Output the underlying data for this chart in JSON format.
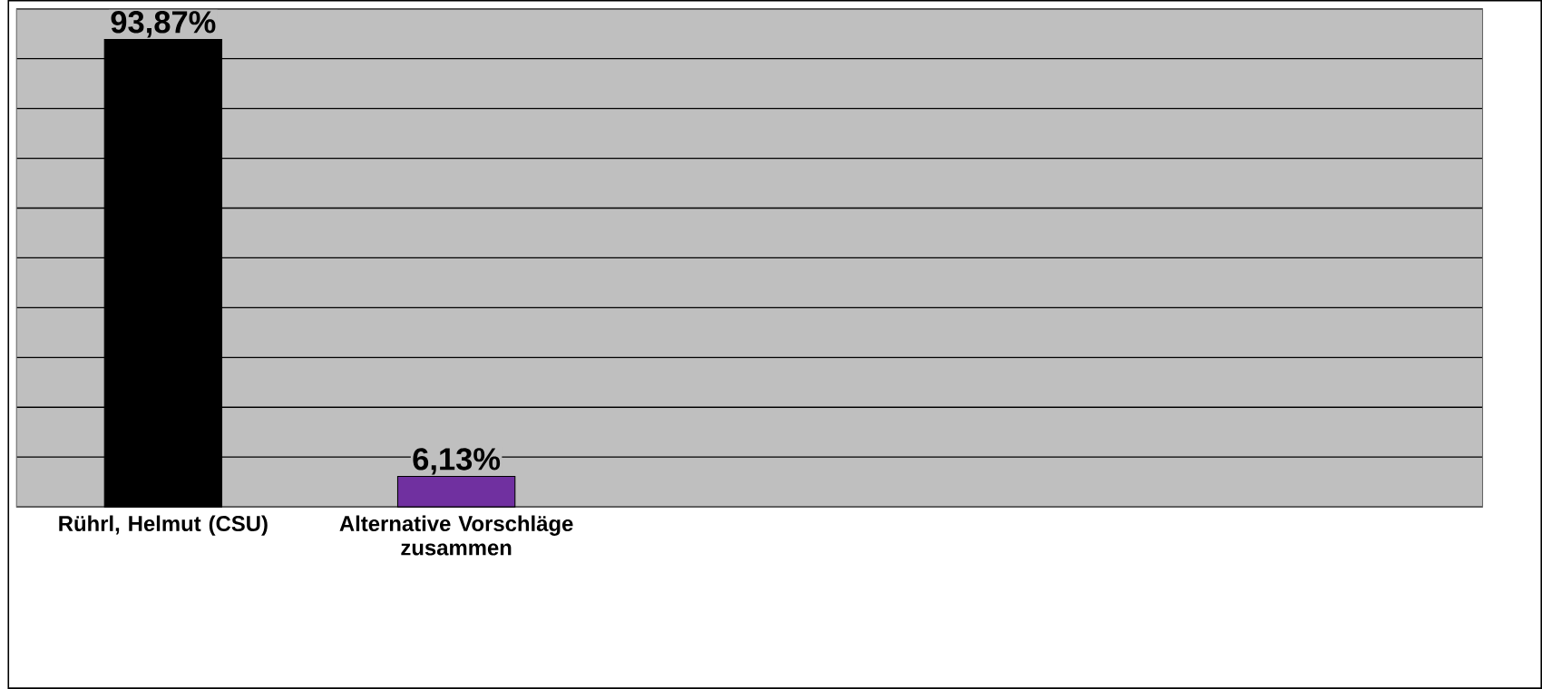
{
  "chart_data": {
    "type": "bar",
    "categories": [
      "Rührl, Helmut (CSU)",
      "Alternative Vorschläge zusammen",
      null,
      null,
      null
    ],
    "values": [
      93.87,
      6.13,
      null,
      null,
      null
    ],
    "colors": [
      "#000000",
      "#7030a0",
      "#000000",
      "#000000",
      "#000000"
    ],
    "value_labels": [
      "93,87%",
      "6,13%",
      null,
      null,
      null
    ],
    "ylim": [
      0,
      100
    ],
    "yticks": [
      {
        "value": 0,
        "label": null
      },
      {
        "value": 10,
        "label": null
      },
      {
        "value": 20,
        "label": null
      },
      {
        "value": 30,
        "label": null
      },
      {
        "value": 40,
        "label": null
      },
      {
        "value": 50,
        "label": null
      },
      {
        "value": 60,
        "label": null
      },
      {
        "value": 70,
        "label": null
      },
      {
        "value": 80,
        "label": null
      },
      {
        "value": 90,
        "label": null
      },
      {
        "value": 100,
        "label": null
      }
    ],
    "tick_labels": "x",
    "grid": "y"
  }
}
